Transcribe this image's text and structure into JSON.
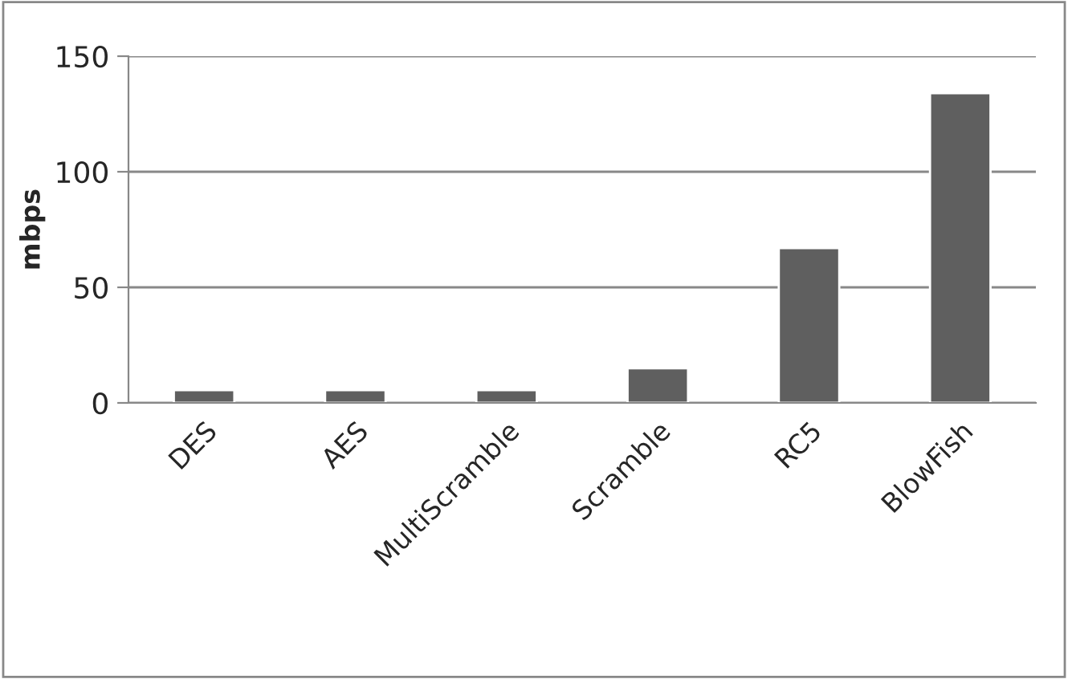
{
  "chart_data": {
    "type": "bar",
    "ylabel": "mbps",
    "categories": [
      "DES",
      "AES",
      "MultiScramble",
      "Scramble",
      "RC5",
      "BlowFish"
    ],
    "values": [
      5.5,
      5.5,
      5.5,
      15,
      67,
      134
    ],
    "color": "#5f5f5f",
    "ylim": [
      0,
      150
    ],
    "yticks": [
      0,
      50,
      100,
      150
    ],
    "grid": "y"
  }
}
